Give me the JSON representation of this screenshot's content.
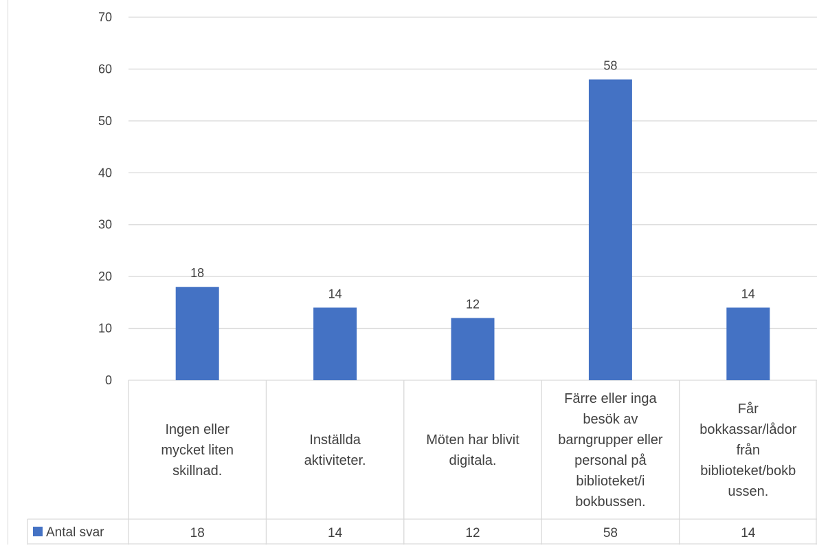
{
  "chart_data": {
    "type": "bar",
    "title": "",
    "xlabel": "",
    "ylabel": "",
    "categories": [
      [
        "Ingen eller",
        "mycket liten",
        "skillnad."
      ],
      [
        "Inställda",
        "aktiviteter."
      ],
      [
        "Möten har blivit",
        "digitala."
      ],
      [
        "Färre eller inga",
        "besök av",
        "barngrupper eller",
        "personal på",
        "biblioteket/i",
        "bokbussen."
      ],
      [
        "Får",
        "bokkassar/lådor",
        "från",
        "biblioteket/bokb",
        "ussen."
      ]
    ],
    "series": [
      {
        "name": "Antal svar",
        "values": [
          18,
          14,
          12,
          58,
          14
        ],
        "color": "#4472C4"
      }
    ],
    "ylim": [
      0,
      70
    ],
    "yticks": [
      0,
      10,
      20,
      30,
      40,
      50,
      60,
      70
    ],
    "grid": true,
    "data_labels": true,
    "legend": "data-table-left"
  }
}
